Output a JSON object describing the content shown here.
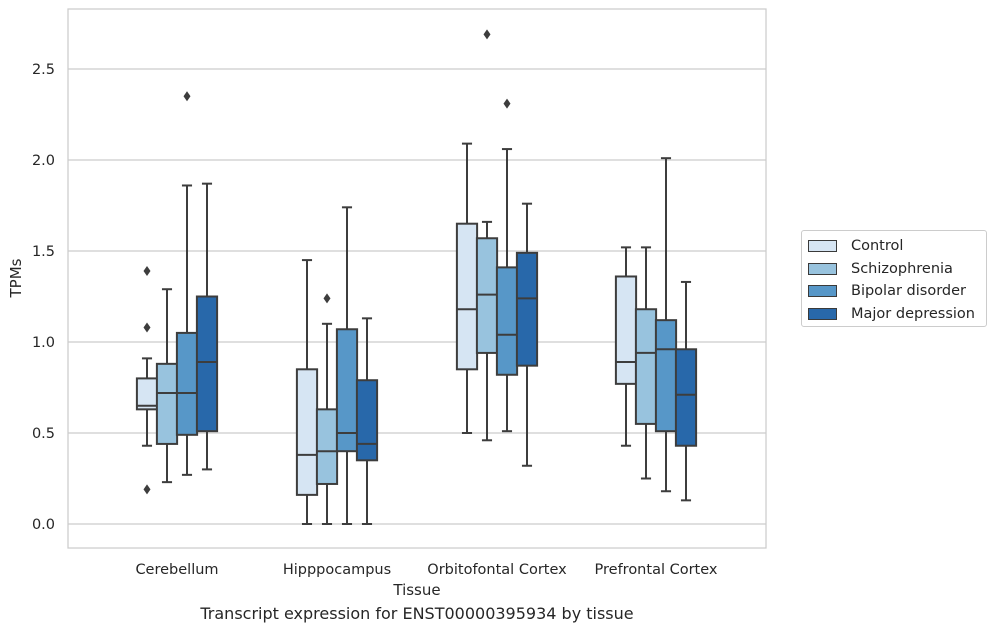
{
  "chart_data": {
    "type": "boxplot",
    "xlabel": "Tissue",
    "ylabel": "TPMs",
    "ylim": [
      -0.13,
      2.85
    ],
    "yticks": [
      "0.0",
      "0.5",
      "1.0",
      "1.5",
      "2.0",
      "2.5"
    ],
    "grid": "horizontal",
    "legend_position": "right",
    "categories": [
      "Cerebellum",
      "Hipppocampus",
      "Orbitofontal Cortex",
      "Prefrontal Cortex"
    ],
    "series": [
      {
        "name": "Control",
        "color": "#d6e5f3",
        "boxes": [
          {
            "whislo": 0.43,
            "q1": 0.63,
            "med": 0.65,
            "q3": 0.8,
            "whishi": 0.91,
            "fliers": [
              1.39,
              1.08,
              0.19
            ]
          },
          {
            "whislo": 0.0,
            "q1": 0.16,
            "med": 0.38,
            "q3": 0.85,
            "whishi": 1.45,
            "fliers": []
          },
          {
            "whislo": 0.5,
            "q1": 0.85,
            "med": 1.18,
            "q3": 1.65,
            "whishi": 2.09,
            "fliers": []
          },
          {
            "whislo": 0.43,
            "q1": 0.77,
            "med": 0.89,
            "q3": 1.36,
            "whishi": 1.52,
            "fliers": []
          }
        ]
      },
      {
        "name": "Schizophrenia",
        "color": "#98c3de",
        "boxes": [
          {
            "whislo": 0.23,
            "q1": 0.44,
            "med": 0.72,
            "q3": 0.88,
            "whishi": 1.29,
            "fliers": []
          },
          {
            "whislo": 0.0,
            "q1": 0.22,
            "med": 0.4,
            "q3": 0.63,
            "whishi": 1.1,
            "fliers": [
              1.24
            ]
          },
          {
            "whislo": 0.46,
            "q1": 0.94,
            "med": 1.26,
            "q3": 1.57,
            "whishi": 1.66,
            "fliers": [
              2.69
            ]
          },
          {
            "whislo": 0.25,
            "q1": 0.55,
            "med": 0.94,
            "q3": 1.18,
            "whishi": 1.52,
            "fliers": []
          }
        ]
      },
      {
        "name": "Bipolar disorder",
        "color": "#5797c8",
        "boxes": [
          {
            "whislo": 0.27,
            "q1": 0.49,
            "med": 0.72,
            "q3": 1.05,
            "whishi": 1.86,
            "fliers": [
              2.35
            ]
          },
          {
            "whislo": 0.0,
            "q1": 0.4,
            "med": 0.5,
            "q3": 1.07,
            "whishi": 1.74,
            "fliers": []
          },
          {
            "whislo": 0.51,
            "q1": 0.82,
            "med": 1.04,
            "q3": 1.41,
            "whishi": 2.06,
            "fliers": [
              2.31
            ]
          },
          {
            "whislo": 0.18,
            "q1": 0.51,
            "med": 0.96,
            "q3": 1.12,
            "whishi": 2.01,
            "fliers": []
          }
        ]
      },
      {
        "name": "Major depression",
        "color": "#2868aa",
        "boxes": [
          {
            "whislo": 0.3,
            "q1": 0.51,
            "med": 0.89,
            "q3": 1.25,
            "whishi": 1.87,
            "fliers": []
          },
          {
            "whislo": 0.0,
            "q1": 0.35,
            "med": 0.44,
            "q3": 0.79,
            "whishi": 1.13,
            "fliers": []
          },
          {
            "whislo": 0.32,
            "q1": 0.87,
            "med": 1.24,
            "q3": 1.49,
            "whishi": 1.76,
            "fliers": []
          },
          {
            "whislo": 0.13,
            "q1": 0.43,
            "med": 0.71,
            "q3": 0.96,
            "whishi": 1.33,
            "fliers": []
          }
        ]
      }
    ]
  },
  "caption": "Transcript expression for ENST00000395934 by tissue"
}
